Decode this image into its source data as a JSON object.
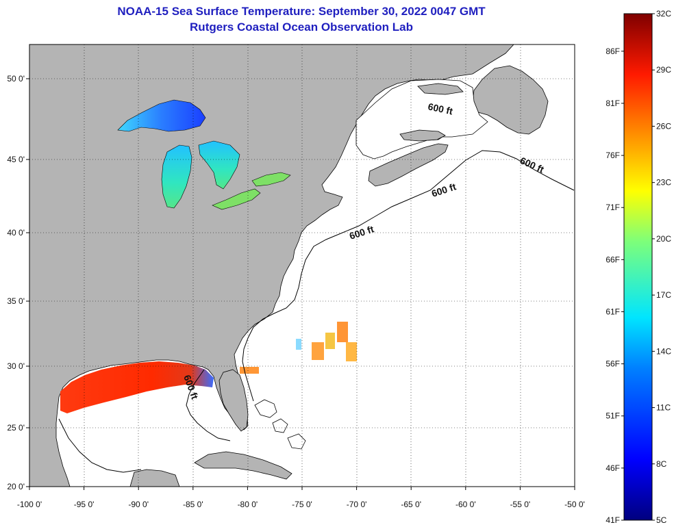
{
  "header": {
    "title": "NOAA-15 Sea Surface Temperature:  September 30, 2022 0047 GMT",
    "subtitle": "Rutgers Coastal Ocean Observation Lab"
  },
  "map": {
    "lon_labels": [
      "-100 0'",
      "-95 0'",
      "-90 0'",
      "-85 0'",
      "-80 0'",
      "-75 0'",
      "-70 0'",
      "-65 0'",
      "-60 0'",
      "-55 0'",
      "-50 0'"
    ],
    "lat_labels": [
      "20 0'",
      "25 0'",
      "30 0'",
      "35 0'",
      "40 0'",
      "45 0'",
      "50 0'"
    ],
    "lon_range": [
      -100,
      -50
    ],
    "lat_range": [
      20,
      52
    ],
    "grid": "dotted",
    "shelf_label": "600 ft",
    "colors": {
      "land": "#b4b4b4",
      "ocean": "#ffffff",
      "coast": "#000000"
    }
  },
  "colorbar": {
    "celsius_labels": [
      "32C",
      "29C",
      "26C",
      "23C",
      "20C",
      "17C",
      "14C",
      "11C",
      "8C",
      "5C"
    ],
    "fahrenheit_labels": [
      "86F",
      "81F",
      "76F",
      "71F",
      "66F",
      "61F",
      "56F",
      "51F",
      "46F",
      "41F"
    ],
    "range_c": [
      5,
      32
    ],
    "palette": [
      "#000080",
      "#0000ff",
      "#0080ff",
      "#00ffff",
      "#80ff80",
      "#ffff00",
      "#ff8000",
      "#ff0000",
      "#800000"
    ]
  }
}
